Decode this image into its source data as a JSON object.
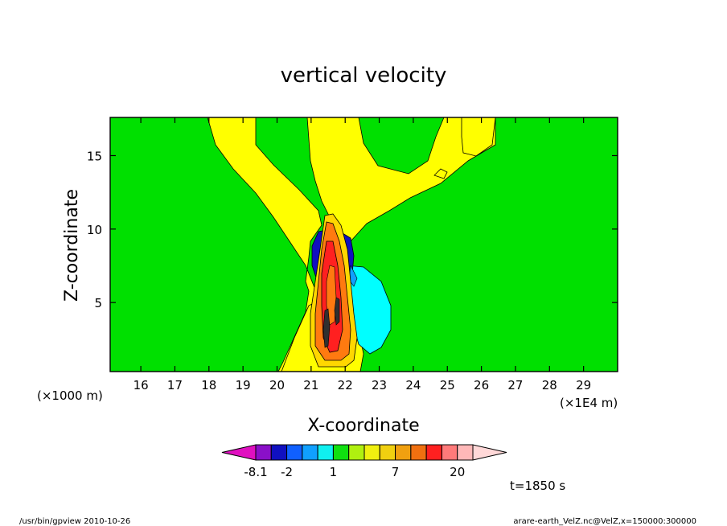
{
  "chart_data": {
    "type": "heatmap",
    "title": "vertical velocity",
    "xlabel": "X-coordinate",
    "ylabel": "Z-coordinate",
    "x_scale_note": "(×1E4 m)",
    "y_scale_note": "(×1000 m)",
    "xlim": [
      15.1,
      30
    ],
    "ylim": [
      0.3,
      17.6
    ],
    "x_ticks": [
      16,
      17,
      18,
      19,
      20,
      21,
      22,
      23,
      24,
      25,
      26,
      27,
      28,
      29
    ],
    "y_ticks": [
      5,
      10,
      15
    ],
    "colorbar": {
      "colors": [
        "#e010c0",
        "#8a10c8",
        "#1010c0",
        "#1060ff",
        "#10a0ff",
        "#10f0f0",
        "#10e010",
        "#b0f010",
        "#f0f010",
        "#f0d010",
        "#f0a010",
        "#f07010",
        "#ff2020",
        "#ff7a7a",
        "#ffb8b8",
        "#ffd8d8"
      ],
      "labels": [
        "-8.1",
        "-2",
        "1",
        "7",
        "20"
      ],
      "label_after_level": [
        0,
        2,
        5,
        9,
        13
      ]
    },
    "time_label": "t=1850 s"
  },
  "footer": {
    "left": "/usr/bin/gpview   2010-10-26",
    "right": "arare-earth_VelZ.nc@VelZ,x=150000:300000"
  },
  "colors": {
    "background_field": "#00e000",
    "weak_updraft": "#ffff00",
    "updraft_mid": "#ffd700",
    "updraft_strong": "#ff7a10",
    "updraft_core": "#ff2020",
    "downdraft_weak": "#00ffff",
    "downdraft_strong": "#1010c0"
  }
}
